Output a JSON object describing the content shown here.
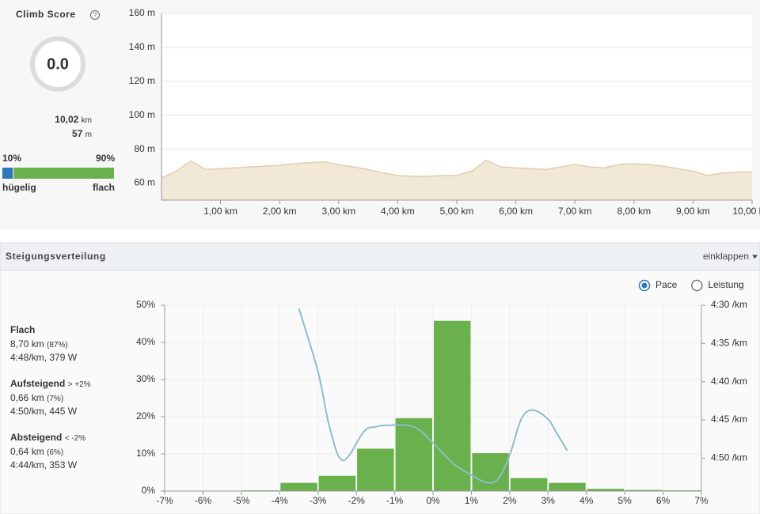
{
  "climb_score": {
    "title": "Climb Score",
    "score": "0.0",
    "distance": "10,02",
    "distance_unit": "km",
    "elevation": "57",
    "elevation_unit": "m",
    "split": {
      "values": [
        10,
        90
      ],
      "value_labels": [
        "10%",
        "90%"
      ],
      "colors": [
        "#2f78b5",
        "#6ab04c"
      ],
      "labels": [
        "hügelig",
        "flach"
      ]
    }
  },
  "panel": {
    "title": "Steigungsverteilung",
    "collapse": "einklappen",
    "options": [
      {
        "label": "Pace",
        "selected": true
      },
      {
        "label": "Leistung",
        "selected": false
      }
    ],
    "stats": [
      {
        "title": "Flach",
        "qualifier": null,
        "distance": "8,70 km",
        "share": "(87%)",
        "detail": "4:48/km, 379 W"
      },
      {
        "title": "Aufsteigend",
        "qualifier": "> +2%",
        "distance": "0,66 km",
        "share": "(7%)",
        "detail": "4:50/km, 445 W"
      },
      {
        "title": "Absteigend",
        "qualifier": "< -2%",
        "distance": "0,64 km",
        "share": "(6%)",
        "detail": "4:44/km, 353 W"
      }
    ]
  },
  "chart_data": [
    {
      "type": "area",
      "x": [
        0,
        0.25,
        0.5,
        0.75,
        1,
        1.25,
        1.5,
        1.75,
        2,
        2.25,
        2.5,
        2.75,
        3,
        3.25,
        3.5,
        3.75,
        4,
        4.25,
        4.5,
        4.75,
        5,
        5.25,
        5.5,
        5.75,
        6,
        6.25,
        6.5,
        6.75,
        7,
        7.25,
        7.5,
        7.75,
        8,
        8.25,
        8.5,
        8.75,
        9,
        9.25,
        9.5,
        9.75,
        10
      ],
      "values": [
        63,
        67,
        73,
        68,
        68.5,
        69,
        69.5,
        70,
        70.5,
        71.5,
        72,
        72.5,
        71,
        69.5,
        68,
        66,
        64.5,
        64,
        64,
        64.5,
        64.5,
        67,
        73.5,
        69.5,
        69,
        68.5,
        68,
        69.5,
        71,
        69.5,
        69,
        71,
        71.5,
        71,
        70,
        68.5,
        67,
        64.5,
        66,
        66.5,
        66.5
      ],
      "color": "#f1e8d8",
      "line_color": "#e0cfaa",
      "xlim": [
        0,
        10
      ],
      "ylim": [
        50,
        160
      ],
      "xticks": [
        {
          "value": 1,
          "label": "1,00 km"
        },
        {
          "value": 2,
          "label": "2,00 km"
        },
        {
          "value": 3,
          "label": "3,00 km"
        },
        {
          "value": 4,
          "label": "4,00 km"
        },
        {
          "value": 5,
          "label": "5,00 km"
        },
        {
          "value": 6,
          "label": "6,00 km"
        },
        {
          "value": 7,
          "label": "7,00 km"
        },
        {
          "value": 8,
          "label": "8,00 km"
        },
        {
          "value": 9,
          "label": "9,00 km"
        },
        {
          "value": 10,
          "label": "10,00 km"
        }
      ],
      "yticks": [
        {
          "value": 60,
          "label": "60 m"
        },
        {
          "value": 80,
          "label": "80 m"
        },
        {
          "value": 100,
          "label": "100 m"
        },
        {
          "value": 120,
          "label": "120 m"
        },
        {
          "value": 140,
          "label": "140 m"
        },
        {
          "value": 160,
          "label": "160 m"
        }
      ],
      "grid": true
    },
    {
      "type": "histogram",
      "bins": [
        -7,
        -6,
        -5,
        -4,
        -3,
        -2,
        -1,
        0,
        1,
        2,
        3,
        4,
        5,
        6,
        7
      ],
      "values": [
        0,
        0,
        0.2,
        2.2,
        4.1,
        11.4,
        19.6,
        45.8,
        10.2,
        3.5,
        2.2,
        0.6,
        0.3,
        0.2
      ],
      "color": "#6ab04c",
      "series": [
        {
          "color": "#8dbdc9",
          "axis": "y2",
          "x": [
            -3.5,
            -3.0,
            -2.7,
            -2.35,
            -1.8,
            -1.5,
            -1.2,
            -0.5,
            0,
            0.5,
            1.0,
            1.4,
            1.7,
            2.0,
            2.3,
            2.6,
            3.0,
            3.2,
            3.5
          ],
          "values": [
            270.4,
            278.7,
            285.9,
            290.3,
            286.5,
            285.9,
            285.7,
            285.9,
            288.0,
            290.6,
            292.2,
            293.2,
            292.7,
            289.6,
            284.9,
            283.7,
            284.9,
            286.5,
            289.0
          ]
        }
      ],
      "xlim": [
        -7,
        7
      ],
      "ylim": [
        0,
        50
      ],
      "y2lim": [
        294.3,
        270
      ],
      "xticks": [
        {
          "value": -7,
          "label": "-7%"
        },
        {
          "value": -6,
          "label": "-6%"
        },
        {
          "value": -5,
          "label": "-5%"
        },
        {
          "value": -4,
          "label": "-4%"
        },
        {
          "value": -3,
          "label": "-3%"
        },
        {
          "value": -2,
          "label": "-2%"
        },
        {
          "value": -1,
          "label": "-1%"
        },
        {
          "value": 0,
          "label": "0%"
        },
        {
          "value": 1,
          "label": "1%"
        },
        {
          "value": 2,
          "label": "2%"
        },
        {
          "value": 3,
          "label": "3%"
        },
        {
          "value": 4,
          "label": "4%"
        },
        {
          "value": 5,
          "label": "5%"
        },
        {
          "value": 6,
          "label": "6%"
        },
        {
          "value": 7,
          "label": "7%"
        }
      ],
      "yticks": [
        {
          "value": 0,
          "label": "0%"
        },
        {
          "value": 10,
          "label": "10%"
        },
        {
          "value": 20,
          "label": "20%"
        },
        {
          "value": 30,
          "label": "30%"
        },
        {
          "value": 40,
          "label": "40%"
        },
        {
          "value": 50,
          "label": "50%"
        }
      ],
      "y2ticks": [
        {
          "value": 270,
          "label": "4:30 /km"
        },
        {
          "value": 275,
          "label": "4:35 /km"
        },
        {
          "value": 280,
          "label": "4:40 /km"
        },
        {
          "value": 285,
          "label": "4:45 /km"
        },
        {
          "value": 290,
          "label": "4:50 /km"
        }
      ],
      "grid": true
    }
  ]
}
